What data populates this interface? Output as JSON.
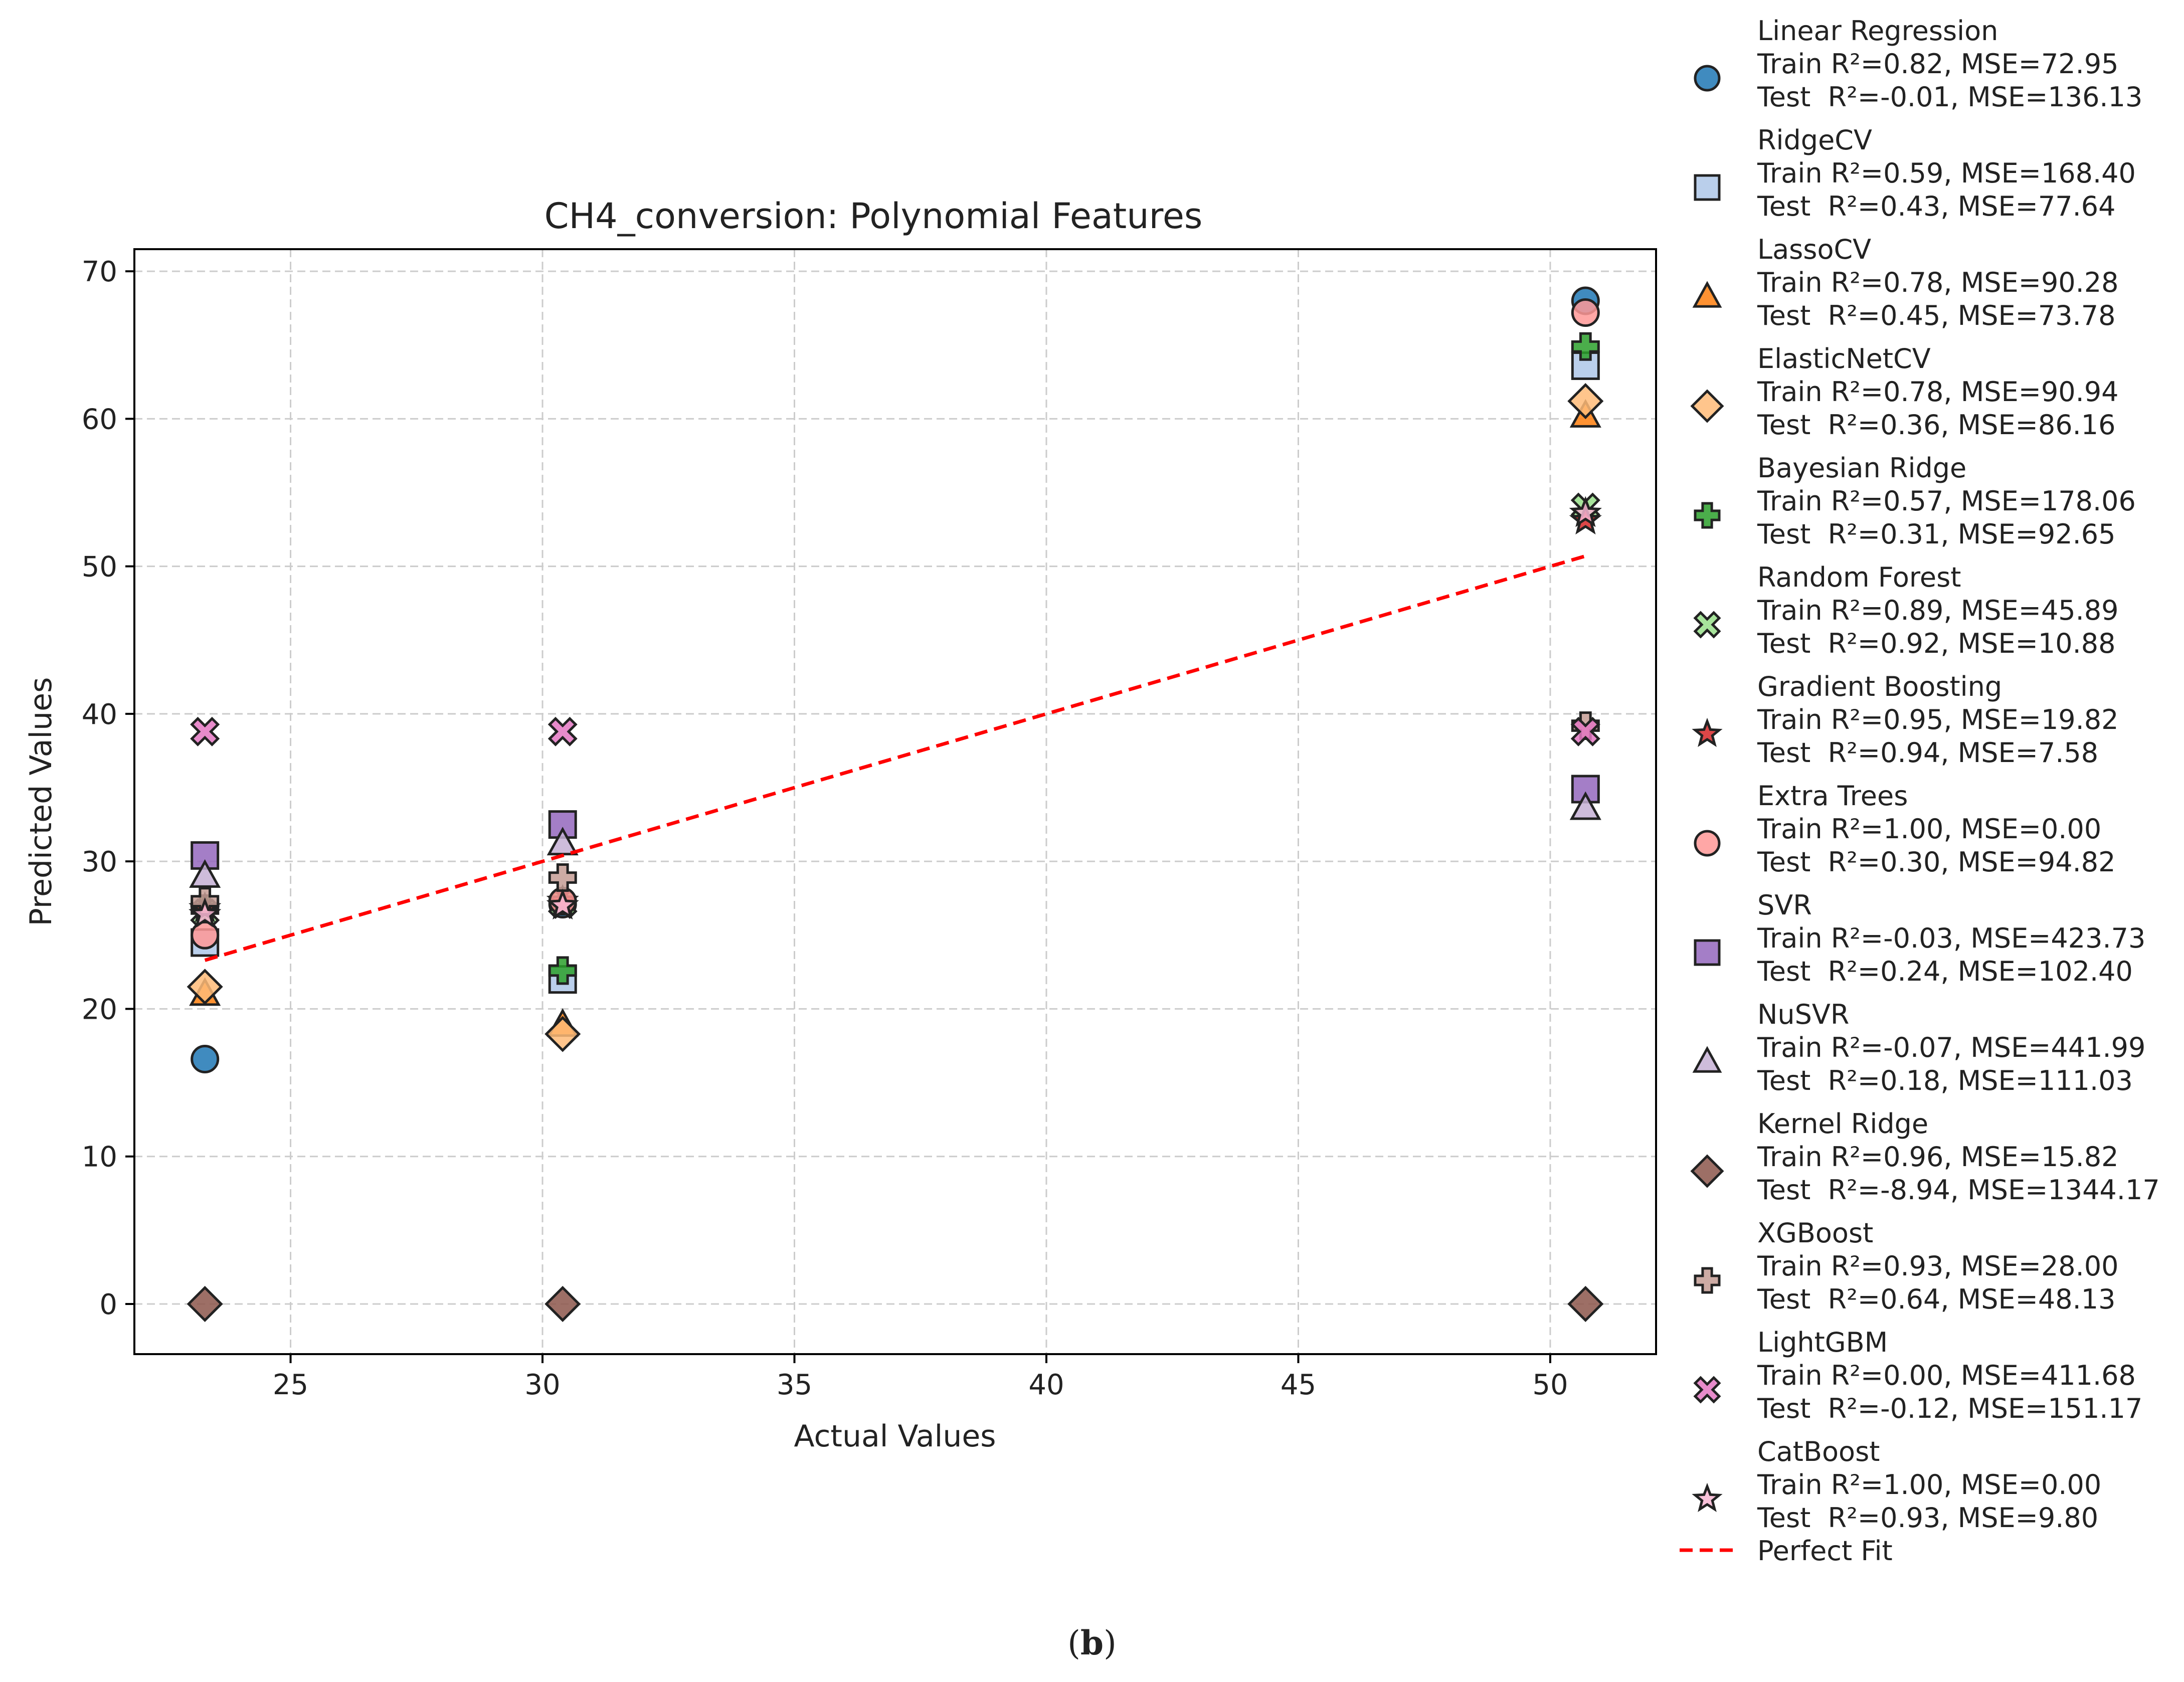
{
  "chart_data": {
    "type": "scatter",
    "title": "CH4_conversion: Polynomial Features",
    "xlabel": "Actual Values",
    "ylabel": "Predicted Values",
    "xlim": [
      21.9,
      52.1
    ],
    "ylim": [
      -3.4,
      71.5
    ],
    "xticks": [
      25,
      30,
      35,
      40,
      45,
      50
    ],
    "yticks": [
      0,
      10,
      20,
      30,
      40,
      50,
      60,
      70
    ],
    "grid": true,
    "legend_position": "outside-right",
    "caption_open": "(",
    "caption_letter": "b",
    "caption_close": ")",
    "perfect_fit": {
      "label": "Perfect Fit",
      "color": "#ff0000",
      "x": [
        23.3,
        50.7
      ],
      "y": [
        23.3,
        50.7
      ]
    },
    "x": [
      23.3,
      30.4,
      50.7
    ],
    "series": [
      {
        "name": "Linear Regression",
        "train": "Train R²=0.82, MSE=72.95",
        "test": "Test  R²=-0.01, MSE=136.13",
        "marker": "circle",
        "color": "#1f77b4",
        "values": [
          16.6,
          27.1,
          68.0
        ]
      },
      {
        "name": "RidgeCV",
        "train": "Train R²=0.59, MSE=168.40",
        "test": "Test  R²=0.43, MSE=77.64",
        "marker": "square",
        "color": "#aec7e8",
        "values": [
          24.5,
          22.0,
          63.6
        ]
      },
      {
        "name": "LassoCV",
        "train": "Train R²=0.78, MSE=90.28",
        "test": "Test  R²=0.45, MSE=73.78",
        "marker": "triangle",
        "color": "#ff7f0e",
        "values": [
          21.0,
          18.9,
          60.2
        ]
      },
      {
        "name": "ElasticNetCV",
        "train": "Train R²=0.78, MSE=90.94",
        "test": "Test  R²=0.36, MSE=86.16",
        "marker": "diamond",
        "color": "#ffbb78",
        "values": [
          21.5,
          18.3,
          61.2
        ]
      },
      {
        "name": "Bayesian Ridge",
        "train": "Train R²=0.57, MSE=178.06",
        "test": "Test  R²=0.31, MSE=92.65",
        "marker": "plus",
        "color": "#2ca02c",
        "values": [
          26.8,
          22.6,
          64.9
        ]
      },
      {
        "name": "Random Forest",
        "train": "Train R²=0.89, MSE=45.89",
        "test": "Test  R²=0.92, MSE=10.88",
        "marker": "x",
        "color": "#98df8a",
        "values": [
          26.5,
          27.1,
          54.0
        ]
      },
      {
        "name": "Gradient Boosting",
        "train": "Train R²=0.95, MSE=19.82",
        "test": "Test  R²=0.94, MSE=7.58",
        "marker": "star",
        "color": "#d62728",
        "values": [
          26.8,
          27.3,
          53.1
        ]
      },
      {
        "name": "Extra Trees",
        "train": "Train R²=1.00, MSE=0.00",
        "test": "Test  R²=0.30, MSE=94.82",
        "marker": "circle",
        "color": "#ff9896",
        "values": [
          25.0,
          27.3,
          67.2
        ]
      },
      {
        "name": "SVR",
        "train": "Train R²=-0.03, MSE=423.73",
        "test": "Test  R²=0.24, MSE=102.40",
        "marker": "square",
        "color": "#9467bd",
        "values": [
          30.4,
          32.5,
          34.9
        ]
      },
      {
        "name": "NuSVR",
        "train": "Train R²=-0.07, MSE=441.99",
        "test": "Test  R²=0.18, MSE=111.03",
        "marker": "triangle",
        "color": "#c5b0d5",
        "values": [
          29.0,
          31.2,
          33.6
        ]
      },
      {
        "name": "Kernel Ridge",
        "train": "Train R²=0.96, MSE=15.82",
        "test": "Test  R²=-8.94, MSE=1344.17",
        "marker": "diamond",
        "color": "#8c564b",
        "values": [
          0.0,
          0.0,
          0.0
        ]
      },
      {
        "name": "XGBoost",
        "train": "Train R²=0.93, MSE=28.00",
        "test": "Test  R²=0.64, MSE=48.13",
        "marker": "plus",
        "color": "#c49c94",
        "values": [
          27.3,
          28.9,
          39.2
        ]
      },
      {
        "name": "LightGBM",
        "train": "Train R²=0.00, MSE=411.68",
        "test": "Test  R²=-0.12, MSE=151.17",
        "marker": "x",
        "color": "#e377c2",
        "values": [
          38.8,
          38.8,
          38.8
        ]
      },
      {
        "name": "CatBoost",
        "train": "Train R²=1.00, MSE=0.00",
        "test": "Test  R²=0.93, MSE=9.80",
        "marker": "star",
        "color": "#f7b6d2",
        "values": [
          26.4,
          27.0,
          53.6
        ]
      }
    ]
  }
}
